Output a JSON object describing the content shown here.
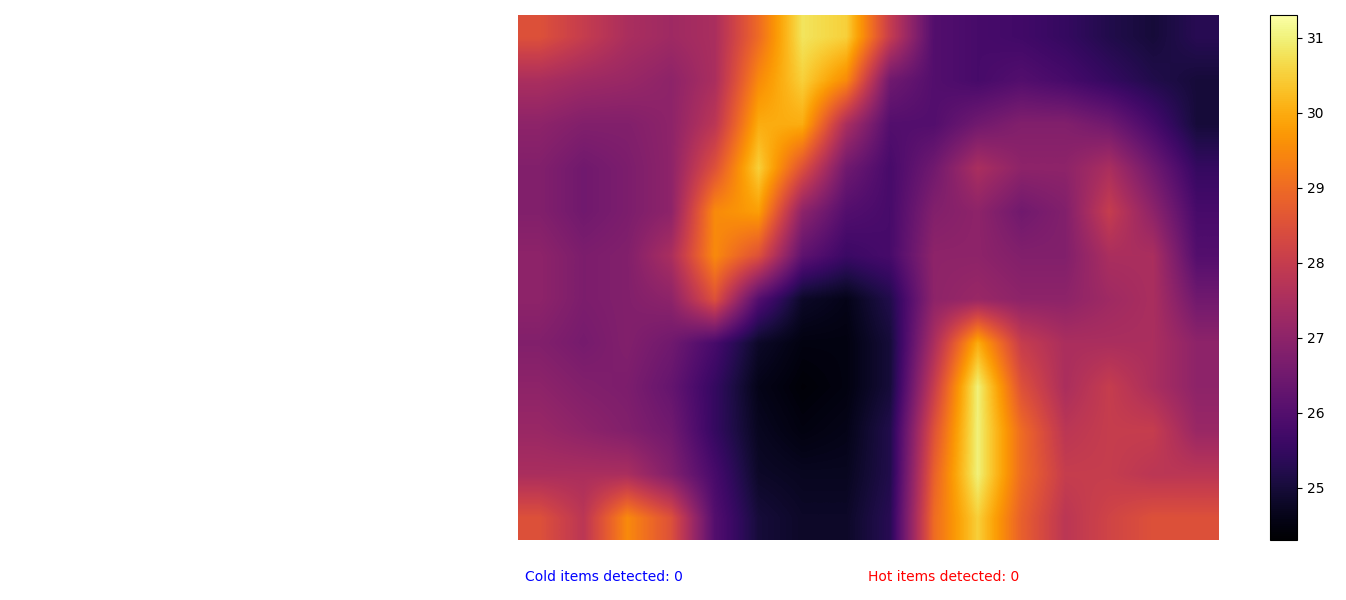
{
  "chart_data": {
    "type": "heatmap",
    "cells": [
      [
        28.5,
        28.0,
        27.5,
        27.3,
        27.5,
        29.0,
        30.8,
        30.5,
        28.0,
        26.0,
        25.8,
        25.7,
        25.5,
        25.2,
        25.0,
        25.3
      ],
      [
        27.5,
        27.3,
        27.2,
        27.0,
        27.5,
        29.5,
        30.5,
        29.5,
        26.5,
        26.0,
        25.8,
        26.0,
        25.8,
        25.5,
        25.2,
        25.0
      ],
      [
        27.0,
        26.8,
        26.8,
        27.0,
        27.8,
        30.0,
        30.0,
        27.5,
        26.0,
        26.0,
        26.5,
        26.8,
        26.8,
        26.5,
        25.8,
        25.0
      ],
      [
        26.8,
        26.5,
        26.7,
        27.0,
        28.5,
        30.5,
        28.5,
        26.5,
        25.8,
        26.5,
        27.5,
        27.0,
        27.0,
        27.5,
        26.5,
        25.5
      ],
      [
        26.8,
        26.5,
        26.7,
        27.0,
        29.5,
        29.8,
        27.0,
        26.0,
        25.8,
        26.8,
        27.0,
        26.5,
        26.8,
        28.0,
        27.0,
        25.8
      ],
      [
        27.0,
        26.7,
        26.8,
        27.5,
        29.5,
        28.5,
        26.2,
        25.6,
        25.8,
        27.0,
        27.0,
        26.8,
        26.8,
        27.5,
        27.5,
        26.0
      ],
      [
        27.0,
        26.7,
        26.8,
        27.0,
        28.5,
        26.0,
        24.8,
        24.6,
        25.2,
        27.0,
        27.2,
        27.0,
        27.0,
        27.3,
        27.5,
        26.5
      ],
      [
        26.8,
        26.6,
        26.8,
        26.5,
        25.8,
        24.8,
        24.5,
        24.5,
        25.0,
        27.5,
        30.0,
        28.0,
        27.5,
        27.5,
        27.5,
        27.0
      ],
      [
        27.0,
        26.8,
        26.7,
        26.3,
        25.5,
        24.6,
        24.4,
        24.5,
        25.0,
        28.0,
        31.0,
        28.5,
        27.5,
        28.0,
        27.5,
        27.0
      ],
      [
        27.2,
        27.0,
        26.8,
        26.5,
        25.5,
        24.7,
        24.5,
        24.6,
        25.2,
        28.5,
        31.0,
        29.0,
        27.8,
        28.0,
        28.0,
        27.2
      ],
      [
        27.5,
        27.5,
        27.5,
        26.8,
        25.8,
        24.8,
        24.7,
        24.7,
        25.2,
        28.8,
        31.0,
        29.0,
        28.0,
        28.0,
        27.8,
        27.8
      ],
      [
        28.5,
        27.8,
        29.5,
        28.5,
        26.0,
        25.0,
        24.8,
        24.8,
        25.3,
        29.0,
        30.5,
        28.8,
        27.8,
        28.2,
        28.5,
        28.5
      ]
    ],
    "colorbar_range": [
      24.3,
      31.3
    ],
    "colorbar_ticks": [
      25,
      26,
      27,
      28,
      29,
      30,
      31
    ],
    "tick_labels": false,
    "annotations": [
      {
        "text": "Cold items detected: 0",
        "color": "blue"
      },
      {
        "text": "Hot items detected: 0",
        "color": "red"
      }
    ]
  }
}
